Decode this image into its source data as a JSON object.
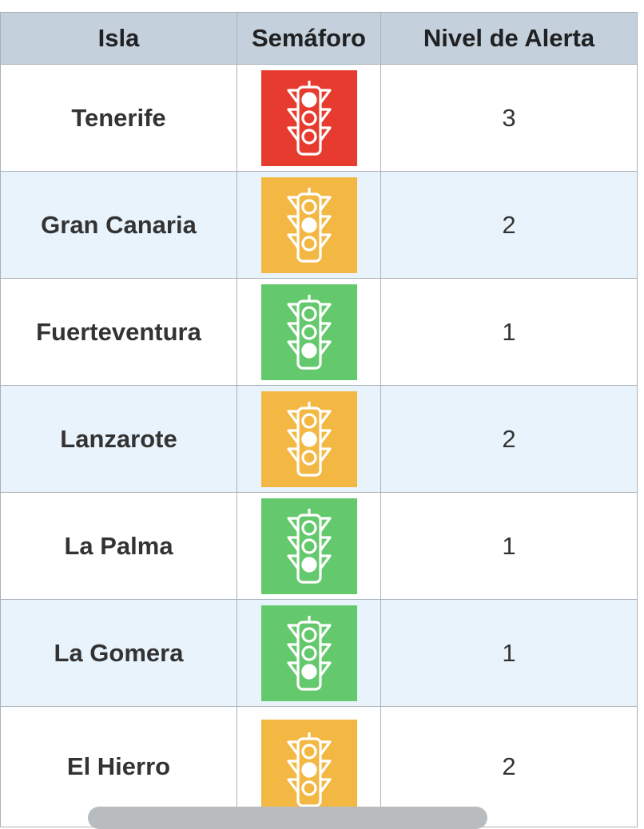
{
  "table": {
    "headers": [
      "Isla",
      "Semáforo",
      "Nivel de Alerta"
    ],
    "rows": [
      {
        "isla": "Tenerife",
        "nivel": "3",
        "lit": "top",
        "color": "#e63b2e"
      },
      {
        "isla": "Gran Canaria",
        "nivel": "2",
        "lit": "middle",
        "color": "#f3b843"
      },
      {
        "isla": "Fuerteventura",
        "nivel": "1",
        "lit": "bottom",
        "color": "#64c86c"
      },
      {
        "isla": "Lanzarote",
        "nivel": "2",
        "lit": "middle",
        "color": "#f3b843"
      },
      {
        "isla": "La Palma",
        "nivel": "1",
        "lit": "bottom",
        "color": "#64c86c"
      },
      {
        "isla": "La Gomera",
        "nivel": "1",
        "lit": "bottom",
        "color": "#64c86c"
      },
      {
        "isla": "El Hierro",
        "nivel": "2",
        "lit": "middle",
        "color": "#f3b843"
      }
    ],
    "icon": "traffic-light-icon"
  }
}
